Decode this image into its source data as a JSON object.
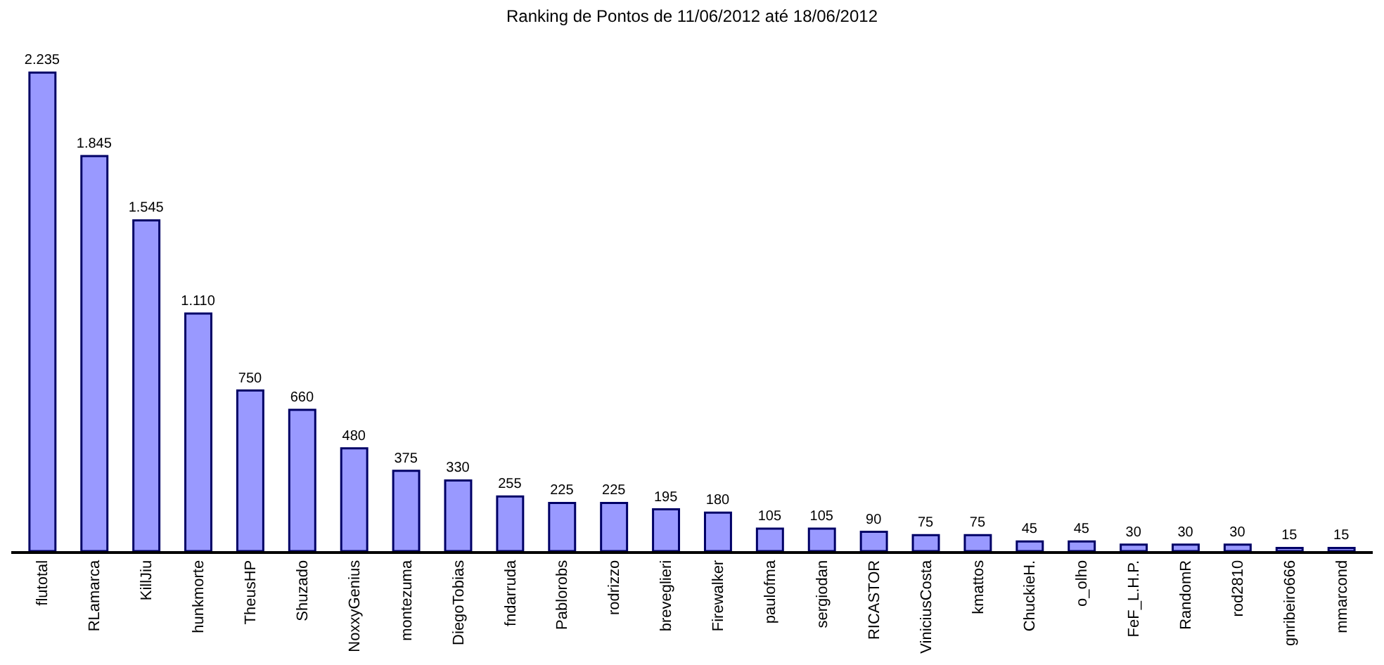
{
  "chart_data": {
    "type": "bar",
    "title": "Ranking de Pontos de 11/06/2012 até 18/06/2012",
    "categories": [
      "flutotal",
      "RLamarca",
      "KillJiu",
      "hunkmorte",
      "TheusHP",
      "Shuzado",
      "NoxxyGenius",
      "montezuma",
      "DiegoTobias",
      "fndarruda",
      "Pablorobs",
      "rodrizzo",
      "breveglieri",
      "Firewalker",
      "paulofma",
      "sergiodan",
      "RICASTOR",
      "ViniciusCosta",
      "kmattos",
      "ChuckieH.",
      "o_olho",
      "FeF_L.H.P.",
      "RandomR",
      "rod2810",
      "gnribeiro666",
      "mmarcond"
    ],
    "values": [
      2235,
      1845,
      1545,
      1110,
      750,
      660,
      480,
      375,
      330,
      255,
      225,
      225,
      195,
      180,
      105,
      105,
      90,
      75,
      75,
      45,
      45,
      30,
      30,
      30,
      15,
      15
    ],
    "value_labels": [
      "2.235",
      "1.845",
      "1.545",
      "1.110",
      "750",
      "660",
      "480",
      "375",
      "330",
      "255",
      "225",
      "225",
      "195",
      "180",
      "105",
      "105",
      "90",
      "75",
      "75",
      "45",
      "45",
      "30",
      "30",
      "30",
      "15",
      "15"
    ],
    "color": "#9999ff",
    "tick_labels": "x"
  }
}
